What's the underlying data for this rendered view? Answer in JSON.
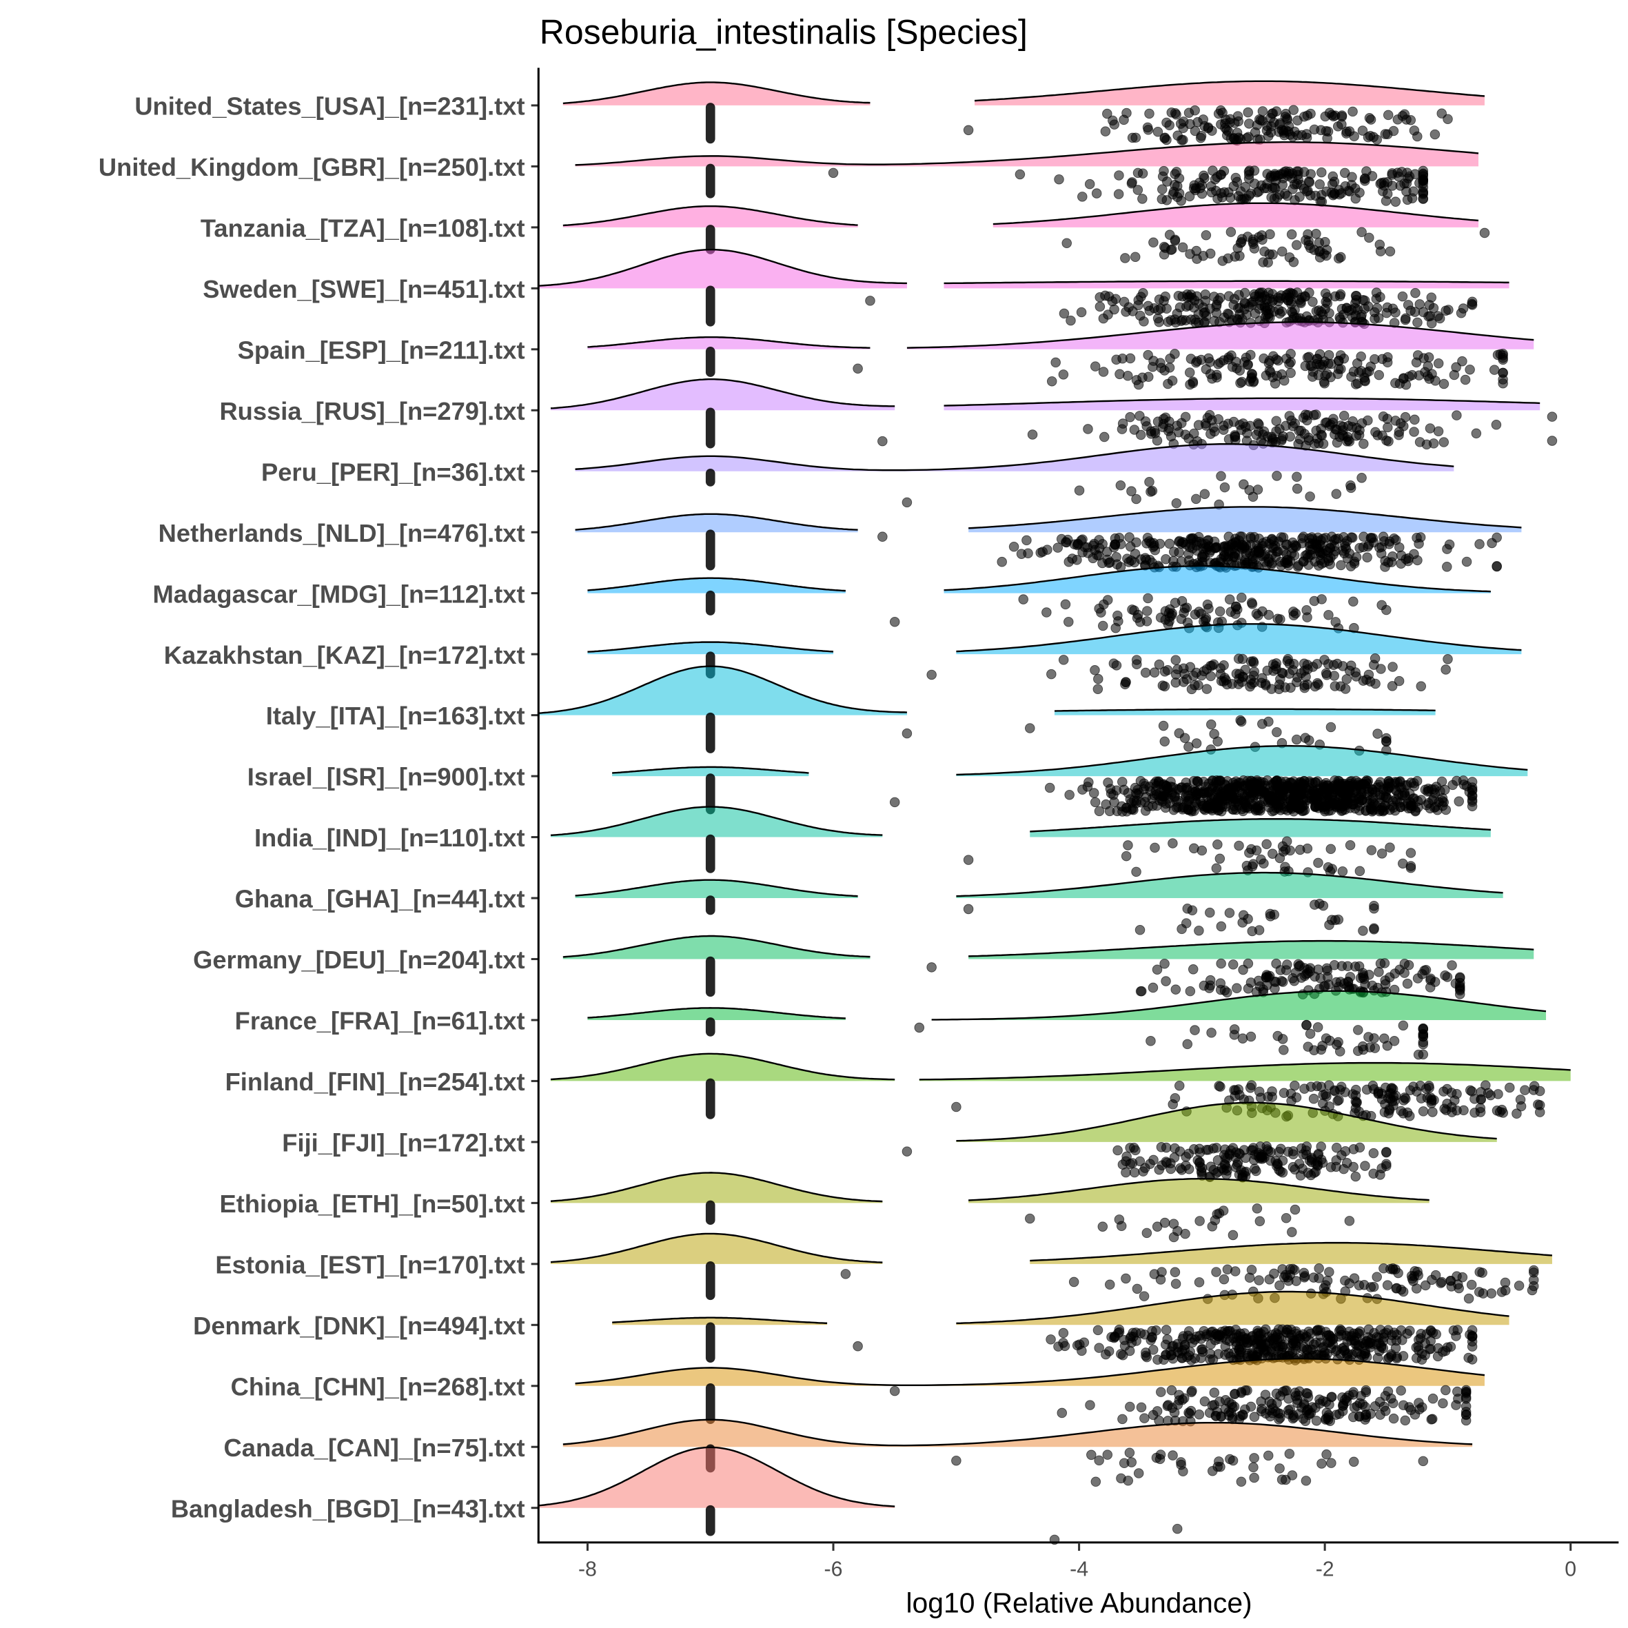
{
  "chart_data": {
    "type": "ridgeline-with-jittered-points",
    "title": "Roseburia_intestinalis [Species]",
    "xlabel": "log10 (Relative Abundance)",
    "ylabel": "",
    "xlim": [
      -8.4,
      0.38
    ],
    "xticks": [
      -8,
      -6,
      -4,
      -2,
      0
    ],
    "xtick_labels": [
      "-8",
      "-6",
      "-4",
      "-2",
      "0"
    ],
    "zero_value": -7,
    "series": [
      {
        "label": "United_States_[USA]_[n=231].txt",
        "color": "#FF6C90",
        "zero_peak": 0.38,
        "segments": [
          [
            -8.2,
            -5.7
          ],
          [
            -4.85,
            -0.7
          ]
        ],
        "mode": -2.5,
        "sd": 1.3,
        "mode_peak": 0.4,
        "points_range": [
          -4.9,
          -1.0
        ],
        "nonzero_points": 150,
        "zero_points": 80
      },
      {
        "label": "United_Kingdom_[GBR]_[n=250].txt",
        "color": "#FF67A4",
        "zero_peak": 0.17,
        "segments": [
          [
            -8.1,
            -0.75
          ]
        ],
        "mode": -2.3,
        "sd": 1.4,
        "mode_peak": 0.4,
        "points_range": [
          -6.0,
          -1.2
        ],
        "nonzero_points": 200,
        "zero_points": 50
      },
      {
        "label": "Tanzania_[TZA]_[n=108].txt",
        "color": "#FF61C3",
        "zero_peak": 0.35,
        "segments": [
          [
            -8.2,
            -5.8
          ],
          [
            -4.7,
            -0.75
          ]
        ],
        "mode": -2.5,
        "sd": 1.1,
        "mode_peak": 0.4,
        "points_range": [
          -4.1,
          -0.7
        ],
        "nonzero_points": 70,
        "zero_points": 38
      },
      {
        "label": "Sweden_[SWE]_[n=451].txt",
        "color": "#F564E3",
        "zero_peak": 0.6,
        "segments": [
          [
            -8.4,
            -5.4
          ],
          [
            -5.1,
            -0.5
          ]
        ],
        "mode": -2.5,
        "sd": 3.0,
        "mode_peak": 0.12,
        "points_range": [
          -5.7,
          -0.8
        ],
        "nonzero_points": 260,
        "zero_points": 190
      },
      {
        "label": "Spain_[ESP]_[n=211].txt",
        "color": "#E76BF3",
        "zero_peak": 0.2,
        "segments": [
          [
            -8.0,
            -5.7
          ],
          [
            -5.4,
            -0.3
          ]
        ],
        "mode": -2.2,
        "sd": 1.3,
        "mode_peak": 0.45,
        "points_range": [
          -5.8,
          -0.55
        ],
        "nonzero_points": 170,
        "zero_points": 40
      },
      {
        "label": "Russia_[RUS]_[n=279].txt",
        "color": "#C77CFF",
        "zero_peak": 0.5,
        "segments": [
          [
            -8.3,
            -5.5
          ],
          [
            -5.1,
            -0.25
          ]
        ],
        "mode": -2.3,
        "sd": 2.0,
        "mode_peak": 0.2,
        "points_range": [
          -5.6,
          -0.15
        ],
        "nonzero_points": 170,
        "zero_points": 110
      },
      {
        "label": "Peru_[PER]_[n=36].txt",
        "color": "#A58AFF",
        "zero_peak": 0.25,
        "segments": [
          [
            -8.1,
            -0.95
          ]
        ],
        "mode": -2.8,
        "sd": 1.0,
        "mode_peak": 0.45,
        "points_range": [
          -5.4,
          -1.7
        ],
        "nonzero_points": 26,
        "zero_points": 10
      },
      {
        "label": "Netherlands_[NLD]_[n=476].txt",
        "color": "#619CFF",
        "zero_peak": 0.3,
        "segments": [
          [
            -8.1,
            -5.8
          ],
          [
            -4.9,
            -0.4
          ]
        ],
        "mode": -2.6,
        "sd": 1.2,
        "mode_peak": 0.42,
        "points_range": [
          -5.6,
          -0.6
        ],
        "nonzero_points": 380,
        "zero_points": 96
      },
      {
        "label": "Madagascar_[MDG]_[n=112].txt",
        "color": "#00A9FF",
        "zero_peak": 0.25,
        "segments": [
          [
            -8.0,
            -5.9
          ],
          [
            -5.1,
            -0.65
          ]
        ],
        "mode": -3.0,
        "sd": 1.0,
        "mode_peak": 0.45,
        "points_range": [
          -5.5,
          -1.5
        ],
        "nonzero_points": 85,
        "zero_points": 27
      },
      {
        "label": "Kazakhstan_[KAZ]_[n=172].txt",
        "color": "#00B4EF",
        "zero_peak": 0.2,
        "segments": [
          [
            -8.0,
            -6.0
          ],
          [
            -5.0,
            -0.4
          ]
        ],
        "mode": -2.6,
        "sd": 1.1,
        "mode_peak": 0.5,
        "points_range": [
          -5.2,
          -1.0
        ],
        "nonzero_points": 140,
        "zero_points": 32
      },
      {
        "label": "Italy_[ITA]_[n=163].txt",
        "color": "#00BBDB",
        "zero_peak": 0.8,
        "segments": [
          [
            -8.4,
            -5.4
          ],
          [
            -4.2,
            -1.1
          ]
        ],
        "mode": -2.5,
        "sd": 2.0,
        "mode_peak": 0.1,
        "points_range": [
          -5.4,
          -1.5
        ],
        "nonzero_points": 30,
        "zero_points": 133
      },
      {
        "label": "Israel_[ISR]_[n=900].txt",
        "color": "#00BFC4",
        "zero_peak": 0.15,
        "segments": [
          [
            -7.8,
            -6.2
          ],
          [
            -5.0,
            -0.35
          ]
        ],
        "mode": -2.3,
        "sd": 1.1,
        "mode_peak": 0.5,
        "points_range": [
          -5.5,
          -0.8
        ],
        "nonzero_points": 780,
        "zero_points": 120
      },
      {
        "label": "India_[IND]_[n=110].txt",
        "color": "#00C09B",
        "zero_peak": 0.5,
        "segments": [
          [
            -8.3,
            -5.6
          ],
          [
            -4.4,
            -0.65
          ]
        ],
        "mode": -2.4,
        "sd": 1.3,
        "mode_peak": 0.3,
        "points_range": [
          -4.9,
          -1.3
        ],
        "nonzero_points": 50,
        "zero_points": 60
      },
      {
        "label": "Ghana_[GHA]_[n=44].txt",
        "color": "#00BF7D",
        "zero_peak": 0.3,
        "segments": [
          [
            -8.1,
            -5.8
          ],
          [
            -5.0,
            -0.55
          ]
        ],
        "mode": -2.5,
        "sd": 1.1,
        "mode_peak": 0.42,
        "points_range": [
          -4.9,
          -1.6
        ],
        "nonzero_points": 30,
        "zero_points": 14
      },
      {
        "label": "Germany_[DEU]_[n=204].txt",
        "color": "#00BC59",
        "zero_peak": 0.38,
        "segments": [
          [
            -8.2,
            -5.7
          ],
          [
            -4.9,
            -0.3
          ]
        ],
        "mode": -2.0,
        "sd": 1.5,
        "mode_peak": 0.3,
        "points_range": [
          -5.2,
          -0.9
        ],
        "nonzero_points": 140,
        "zero_points": 64
      },
      {
        "label": "France_[FRA]_[n=61].txt",
        "color": "#00BA38",
        "zero_peak": 0.2,
        "segments": [
          [
            -8.0,
            -5.9
          ],
          [
            -5.2,
            -0.2
          ]
        ],
        "mode": -1.9,
        "sd": 1.1,
        "mode_peak": 0.48,
        "points_range": [
          -5.3,
          -1.2
        ],
        "nonzero_points": 48,
        "zero_points": 13
      },
      {
        "label": "Finland_[FIN]_[n=254].txt",
        "color": "#53B400",
        "zero_peak": 0.45,
        "segments": [
          [
            -8.3,
            -5.5
          ],
          [
            -5.3,
            0.0
          ]
        ],
        "mode": -1.6,
        "sd": 1.6,
        "mode_peak": 0.3,
        "points_range": [
          -5.0,
          -0.25
        ],
        "nonzero_points": 160,
        "zero_points": 94
      },
      {
        "label": "Fiji_[FJI]_[n=172].txt",
        "color": "#7CAE00",
        "zero_peak": 0,
        "segments": [
          [
            -5.0,
            -0.6
          ]
        ],
        "mode": -2.6,
        "sd": 0.9,
        "mode_peak": 0.65,
        "points_range": [
          -5.4,
          -1.5
        ],
        "nonzero_points": 172,
        "zero_points": 0
      },
      {
        "label": "Ethiopia_[ETH]_[n=50].txt",
        "color": "#9AA800",
        "zero_peak": 0.5,
        "segments": [
          [
            -8.3,
            -5.6
          ],
          [
            -4.9,
            -1.15
          ]
        ],
        "mode": -3.0,
        "sd": 0.9,
        "mode_peak": 0.4,
        "points_range": [
          -4.4,
          -1.8
        ],
        "nonzero_points": 24,
        "zero_points": 26
      },
      {
        "label": "Estonia_[EST]_[n=170].txt",
        "color": "#B79F00",
        "zero_peak": 0.5,
        "segments": [
          [
            -8.3,
            -5.6
          ],
          [
            -4.4,
            -0.15
          ]
        ],
        "mode": -1.9,
        "sd": 1.3,
        "mode_peak": 0.35,
        "points_range": [
          -5.9,
          -0.3
        ],
        "nonzero_points": 110,
        "zero_points": 60
      },
      {
        "label": "Denmark_[DNK]_[n=494].txt",
        "color": "#C49A00",
        "zero_peak": 0.12,
        "segments": [
          [
            -7.8,
            -6.05
          ],
          [
            -5.0,
            -0.5
          ]
        ],
        "mode": -2.3,
        "sd": 1.1,
        "mode_peak": 0.55,
        "points_range": [
          -5.8,
          -0.8
        ],
        "nonzero_points": 430,
        "zero_points": 64
      },
      {
        "label": "China_[CHN]_[n=268].txt",
        "color": "#D89000",
        "zero_peak": 0.3,
        "segments": [
          [
            -8.1,
            -0.7
          ]
        ],
        "mode": -2.2,
        "sd": 1.1,
        "mode_peak": 0.45,
        "points_range": [
          -5.5,
          -0.85
        ],
        "nonzero_points": 200,
        "zero_points": 68
      },
      {
        "label": "Canada_[CAN]_[n=75].txt",
        "color": "#EA8331",
        "zero_peak": 0.45,
        "segments": [
          [
            -8.2,
            -0.8
          ]
        ],
        "mode": -2.9,
        "sd": 1.0,
        "mode_peak": 0.4,
        "points_range": [
          -5.0,
          -1.2
        ],
        "nonzero_points": 40,
        "zero_points": 35
      },
      {
        "label": "Bangladesh_[BGD]_[n=43].txt",
        "color": "#F8766D",
        "zero_peak": 1.0,
        "segments": [
          [
            -8.4,
            -5.5
          ]
        ],
        "mode": -3.5,
        "sd": 0.5,
        "mode_peak": 0,
        "points_range": [
          -4.2,
          -3.2
        ],
        "nonzero_points": 2,
        "zero_points": 41
      }
    ]
  }
}
